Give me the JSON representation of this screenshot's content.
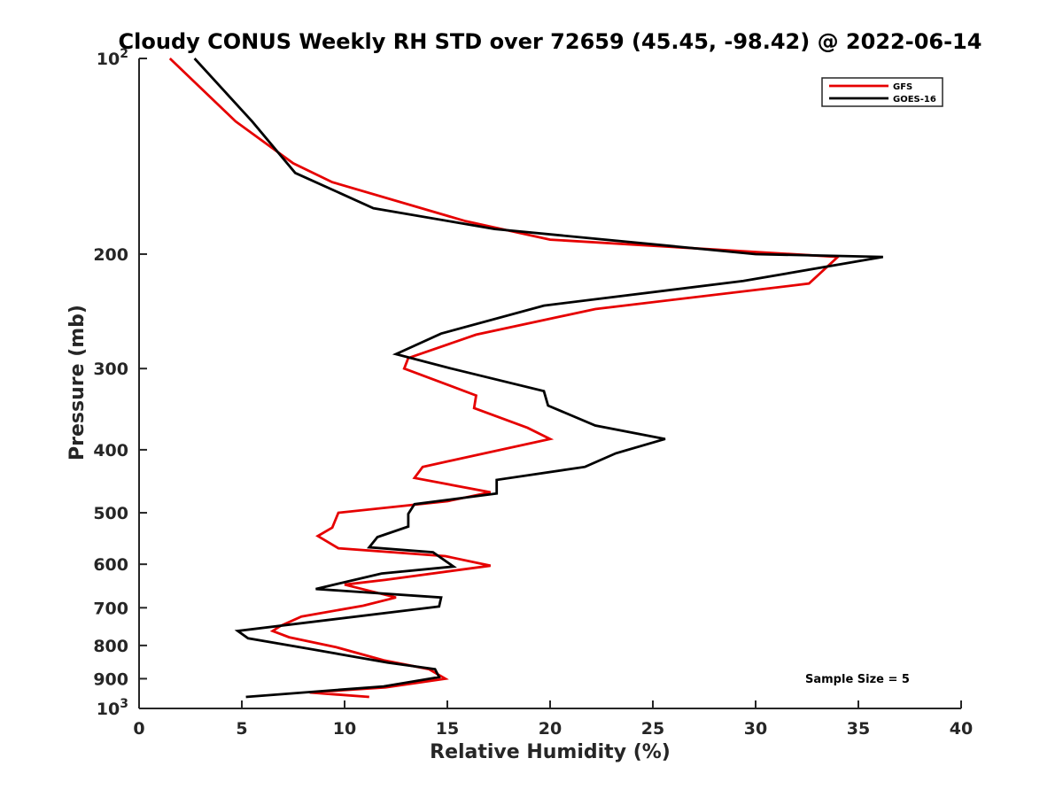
{
  "chart_data": {
    "type": "line",
    "title": "Cloudy CONUS Weekly RH STD over 72659 (45.45, -98.42) @ 2022-06-14",
    "xlabel": "Relative Humidity (%)",
    "ylabel": "Pressure (mb)",
    "xlim": [
      0,
      40
    ],
    "ylim": [
      100,
      1000
    ],
    "y_scale": "log",
    "y_reversed": true,
    "x_ticks": [
      "0",
      "5",
      "10",
      "15",
      "20",
      "25",
      "30",
      "35",
      "40"
    ],
    "x_tick_values": [
      0,
      5,
      10,
      15,
      20,
      25,
      30,
      35,
      40
    ],
    "y_ticks": [
      {
        "value": 100,
        "base": "10",
        "exp": "2"
      },
      {
        "value": 200,
        "base": "200",
        "exp": ""
      },
      {
        "value": 300,
        "base": "300",
        "exp": ""
      },
      {
        "value": 400,
        "base": "400",
        "exp": ""
      },
      {
        "value": 500,
        "base": "500",
        "exp": ""
      },
      {
        "value": 600,
        "base": "600",
        "exp": ""
      },
      {
        "value": 700,
        "base": "700",
        "exp": ""
      },
      {
        "value": 800,
        "base": "800",
        "exp": ""
      },
      {
        "value": 900,
        "base": "900",
        "exp": ""
      },
      {
        "value": 1000,
        "base": "10",
        "exp": "3"
      }
    ],
    "grid": false,
    "legend_position": "top-right",
    "annotation": "Sample Size = 5",
    "series": [
      {
        "name": "GFS",
        "color": "#e60000",
        "points": [
          [
            1.5,
            100
          ],
          [
            4.7,
            125
          ],
          [
            7.5,
            145
          ],
          [
            9.4,
            155
          ],
          [
            15.9,
            178
          ],
          [
            20.0,
            190
          ],
          [
            34.0,
            202
          ],
          [
            32.6,
            222
          ],
          [
            22.2,
            243
          ],
          [
            16.4,
            266
          ],
          [
            13.1,
            289
          ],
          [
            12.9,
            300
          ],
          [
            16.4,
            330
          ],
          [
            16.3,
            345
          ],
          [
            18.9,
            370
          ],
          [
            20.0,
            385
          ],
          [
            13.8,
            425
          ],
          [
            13.4,
            442
          ],
          [
            17.1,
            465
          ],
          [
            15.0,
            480
          ],
          [
            9.7,
            500
          ],
          [
            9.4,
            527
          ],
          [
            8.7,
            543
          ],
          [
            9.7,
            567
          ],
          [
            14.9,
            583
          ],
          [
            17.1,
            603
          ],
          [
            12.0,
            634
          ],
          [
            10.0,
            645
          ],
          [
            12.5,
            675
          ],
          [
            10.9,
            695
          ],
          [
            7.9,
            722
          ],
          [
            6.9,
            746
          ],
          [
            6.5,
            760
          ],
          [
            7.3,
            777
          ],
          [
            9.6,
            805
          ],
          [
            11.9,
            843
          ],
          [
            14.1,
            870
          ],
          [
            14.9,
            900
          ],
          [
            12.0,
            928
          ],
          [
            8.3,
            945
          ],
          [
            11.2,
            960
          ]
        ]
      },
      {
        "name": "GOES-16",
        "color": "#000000",
        "points": [
          [
            2.7,
            100
          ],
          [
            5.5,
            125
          ],
          [
            7.6,
            150
          ],
          [
            11.4,
            170
          ],
          [
            17.3,
            183
          ],
          [
            30.0,
            200
          ],
          [
            36.2,
            202
          ],
          [
            29.4,
            220
          ],
          [
            19.7,
            240
          ],
          [
            14.7,
            265
          ],
          [
            12.5,
            285
          ],
          [
            15.2,
            300
          ],
          [
            19.7,
            325
          ],
          [
            19.9,
            342
          ],
          [
            22.2,
            367
          ],
          [
            25.6,
            385
          ],
          [
            23.2,
            405
          ],
          [
            21.7,
            425
          ],
          [
            17.4,
            445
          ],
          [
            17.4,
            467
          ],
          [
            13.4,
            485
          ],
          [
            13.1,
            502
          ],
          [
            13.1,
            525
          ],
          [
            11.6,
            545
          ],
          [
            11.2,
            565
          ],
          [
            14.3,
            575
          ],
          [
            15.3,
            605
          ],
          [
            11.8,
            620
          ],
          [
            8.6,
            655
          ],
          [
            14.7,
            675
          ],
          [
            14.6,
            697
          ],
          [
            4.8,
            760
          ],
          [
            5.3,
            780
          ],
          [
            8.3,
            810
          ],
          [
            12.1,
            850
          ],
          [
            14.4,
            870
          ],
          [
            14.6,
            895
          ],
          [
            11.9,
            925
          ],
          [
            5.2,
            960
          ]
        ]
      }
    ]
  }
}
